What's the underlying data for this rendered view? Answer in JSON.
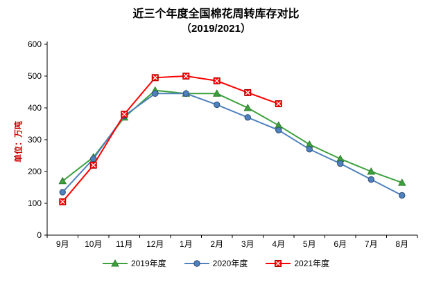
{
  "chart": {
    "title_line1": "近三个年度全国棉花周转库存对比",
    "title_line2": "（2019/2021）",
    "ylabel": "单位：万吨",
    "ylabel_color": "#cc0000"
  },
  "chart_data": {
    "type": "line",
    "title": "近三个年度全国棉花周转库存对比（2019/2021）",
    "xlabel": "",
    "ylabel": "单位：万吨",
    "categories": [
      "9月",
      "10月",
      "11月",
      "12月",
      "1月",
      "2月",
      "3月",
      "4月",
      "5月",
      "6月",
      "7月",
      "8月"
    ],
    "series": [
      {
        "name": "2019年度",
        "color": "#3ca03c",
        "edge": "#2e7d2e",
        "marker": "triangle",
        "values": [
          170,
          245,
          370,
          455,
          445,
          445,
          400,
          345,
          285,
          240,
          200,
          165
        ]
      },
      {
        "name": "2020年度",
        "color": "#4f81bd",
        "edge": "#2c4d75",
        "marker": "circle",
        "values": [
          135,
          240,
          375,
          445,
          445,
          410,
          370,
          330,
          270,
          225,
          175,
          125
        ]
      },
      {
        "name": "2021年度",
        "color": "#ff0000",
        "edge": "#b00000",
        "marker": "square-x",
        "values": [
          105,
          220,
          380,
          495,
          500,
          485,
          448,
          413,
          null,
          null,
          null,
          null
        ]
      }
    ],
    "ylim": [
      0,
      600
    ],
    "yticks": [
      0,
      100,
      200,
      300,
      400,
      500,
      600
    ],
    "grid": false,
    "legend_position": "bottom"
  }
}
